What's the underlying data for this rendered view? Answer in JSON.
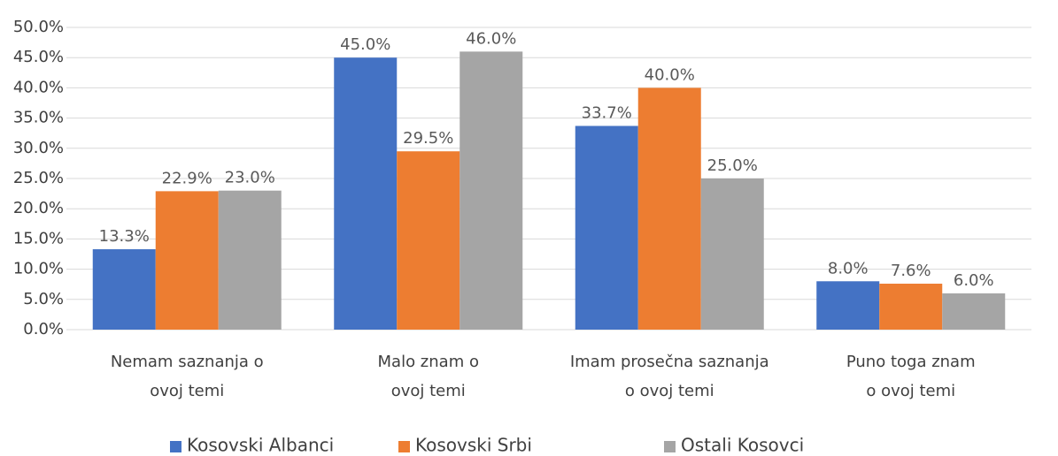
{
  "chart_data": {
    "type": "bar",
    "categories": [
      [
        "Nemam saznanja o",
        "ovoj temi"
      ],
      [
        "Malo znam o",
        "ovoj temi"
      ],
      [
        "Imam prosečna saznanja",
        "o ovoj temi"
      ],
      [
        "Puno toga znam",
        "o ovoj temi"
      ]
    ],
    "series": [
      {
        "name": "Kosovski Albanci",
        "color": "#4472c4",
        "values": [
          13.3,
          45.0,
          33.7,
          8.0
        ],
        "value_labels": [
          "13.3%",
          "45.0%",
          "33.7%",
          "8.0%"
        ]
      },
      {
        "name": "Kosovski Srbi",
        "color": "#ed7d31",
        "values": [
          22.9,
          29.5,
          40.0,
          7.6
        ],
        "value_labels": [
          "22.9%",
          "29.5%",
          "40.0%",
          "7.6%"
        ]
      },
      {
        "name": "Ostali Kosovci",
        "color": "#a5a5a5",
        "values": [
          23.0,
          46.0,
          25.0,
          6.0
        ],
        "value_labels": [
          "23.0%",
          "46.0%",
          "25.0%",
          "6.0%"
        ]
      }
    ],
    "ylim": [
      0,
      50
    ],
    "yticks": [
      {
        "value": 0,
        "label": "0.0%"
      },
      {
        "value": 5,
        "label": "5.0%"
      },
      {
        "value": 10,
        "label": "10.0%"
      },
      {
        "value": 15,
        "label": "15.0%"
      },
      {
        "value": 20,
        "label": "20.0%"
      },
      {
        "value": 25,
        "label": "25.0%"
      },
      {
        "value": 30,
        "label": "30.0%"
      },
      {
        "value": 35,
        "label": "35.0%"
      },
      {
        "value": 40,
        "label": "40.0%"
      },
      {
        "value": 45,
        "label": "45.0%"
      },
      {
        "value": 50,
        "label": "50.0%"
      }
    ],
    "grid": true,
    "legend": "bottom"
  }
}
